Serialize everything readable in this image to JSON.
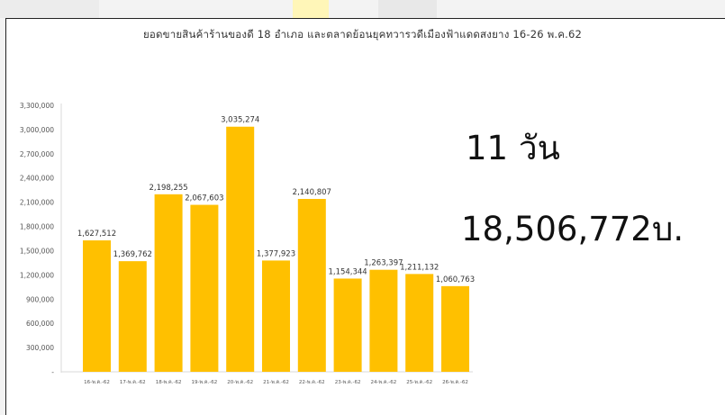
{
  "summary": {
    "days": "11 วัน",
    "total": "18,506,772บ."
  },
  "chart_data": {
    "type": "bar",
    "title": "ยอดขายสินค้าร้านของดี 18 อำเภอ และตลาดย้อนยุคทวารวดีเมืองฟ้าแดดสงยาง 16-26 พ.ค.62",
    "categories": [
      "16-พ.ค.-62",
      "17-พ.ค.-62",
      "18-พ.ค.-62",
      "19-พ.ค.-62",
      "20-พ.ค.-62",
      "21-พ.ค.-62",
      "22-พ.ค.-62",
      "23-พ.ค.-62",
      "24-พ.ค.-62",
      "25-พ.ค.-62",
      "26-พ.ค.-62"
    ],
    "values": [
      1627512,
      1369762,
      2198255,
      2067603,
      3035274,
      1377923,
      2140807,
      1154344,
      1263397,
      1211132,
      1060763
    ],
    "value_labels": [
      "1,627,512",
      "1,369,762",
      "2,198,255",
      "2,067,603",
      "3,035,274",
      "1,377,923",
      "2,140,807",
      "1,154,344",
      "1,263,397",
      "1,211,132",
      "1,060,763"
    ],
    "y_ticks": [
      "-",
      "300,000",
      "600,000",
      "900,000",
      "1,200,000",
      "1,500,000",
      "1,800,000",
      "2,100,000",
      "2,400,000",
      "2,700,000",
      "3,000,000",
      "3,300,000"
    ],
    "ylim": [
      0,
      3300000
    ],
    "bar_color": "#FFC000",
    "grid": false,
    "xlabel": "",
    "ylabel": ""
  }
}
